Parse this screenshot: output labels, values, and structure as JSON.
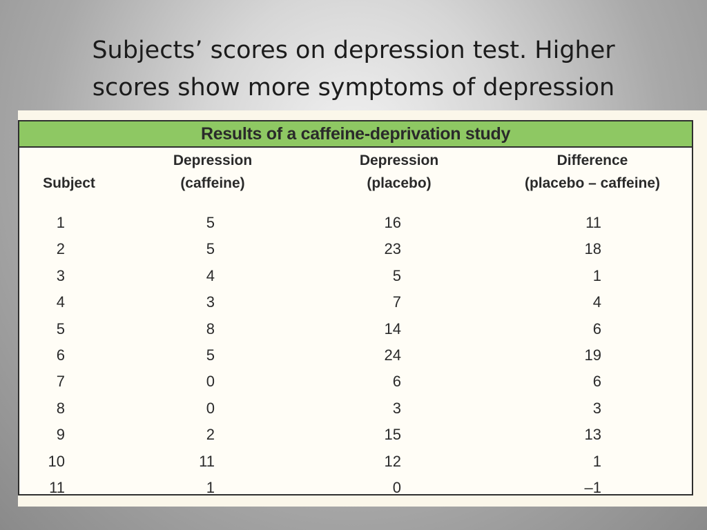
{
  "slide": {
    "title_line1": "Subjects’ scores on depression test.  Higher",
    "title_line2": "scores show more symptoms of depression"
  },
  "table": {
    "caption": "Results of a caffeine-deprivation study",
    "headers": {
      "subject": "Subject",
      "caffeine_line1": "Depression",
      "caffeine_line2": "(caffeine)",
      "placebo_line1": "Depression",
      "placebo_line2": "(placebo)",
      "difference_line1": "Difference",
      "difference_line2": "(placebo – caffeine)"
    },
    "rows": [
      {
        "subject": "1",
        "caffeine": "5",
        "placebo": "16",
        "difference": "11"
      },
      {
        "subject": "2",
        "caffeine": "5",
        "placebo": "23",
        "difference": "18"
      },
      {
        "subject": "3",
        "caffeine": "4",
        "placebo": "5",
        "difference": "1"
      },
      {
        "subject": "4",
        "caffeine": "3",
        "placebo": "7",
        "difference": "4"
      },
      {
        "subject": "5",
        "caffeine": "8",
        "placebo": "14",
        "difference": "6"
      },
      {
        "subject": "6",
        "caffeine": "5",
        "placebo": "24",
        "difference": "19"
      },
      {
        "subject": "7",
        "caffeine": "0",
        "placebo": "6",
        "difference": "6"
      },
      {
        "subject": "8",
        "caffeine": "0",
        "placebo": "3",
        "difference": "3"
      },
      {
        "subject": "9",
        "caffeine": "2",
        "placebo": "15",
        "difference": "13"
      },
      {
        "subject": "10",
        "caffeine": "11",
        "placebo": "12",
        "difference": "1"
      },
      {
        "subject": "11",
        "caffeine": "1",
        "placebo": "0",
        "difference": "–1"
      }
    ]
  }
}
